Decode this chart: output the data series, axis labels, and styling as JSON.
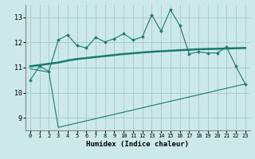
{
  "xlabel": "Humidex (Indice chaleur)",
  "background_color": "#cce8e8",
  "grid_color": "#aacccc",
  "line_color": "#1a7a6e",
  "xlim": [
    -0.5,
    23.5
  ],
  "ylim": [
    8.5,
    13.5
  ],
  "yticks": [
    9,
    10,
    11,
    12,
    13
  ],
  "xticks": [
    0,
    1,
    2,
    3,
    4,
    5,
    6,
    7,
    8,
    9,
    10,
    11,
    12,
    13,
    14,
    15,
    16,
    17,
    18,
    19,
    20,
    21,
    22,
    23
  ],
  "line1_x": [
    0,
    1,
    2,
    3,
    4,
    5,
    6,
    7,
    8,
    9,
    10,
    11,
    12,
    13,
    14,
    15,
    16,
    17,
    18,
    19,
    20,
    21,
    22,
    23
  ],
  "line1_y": [
    10.5,
    11.05,
    10.85,
    12.1,
    12.3,
    11.88,
    11.78,
    12.2,
    12.02,
    12.15,
    12.35,
    12.1,
    12.22,
    13.1,
    12.45,
    13.3,
    12.68,
    11.55,
    11.62,
    11.58,
    11.58,
    11.82,
    11.05,
    10.35
  ],
  "line2_x": [
    0,
    1,
    2,
    3,
    4,
    5,
    6,
    7,
    8,
    9,
    10,
    11,
    12,
    13,
    14,
    15,
    16,
    17,
    18,
    19,
    20,
    21,
    22,
    23
  ],
  "line2_y": [
    11.05,
    11.1,
    11.15,
    11.2,
    11.28,
    11.34,
    11.38,
    11.42,
    11.46,
    11.5,
    11.54,
    11.57,
    11.6,
    11.63,
    11.65,
    11.67,
    11.69,
    11.71,
    11.73,
    11.74,
    11.75,
    11.76,
    11.77,
    11.78
  ],
  "line3_x": [
    0,
    2,
    3,
    23
  ],
  "line3_y": [
    10.95,
    10.82,
    8.62,
    10.35
  ]
}
